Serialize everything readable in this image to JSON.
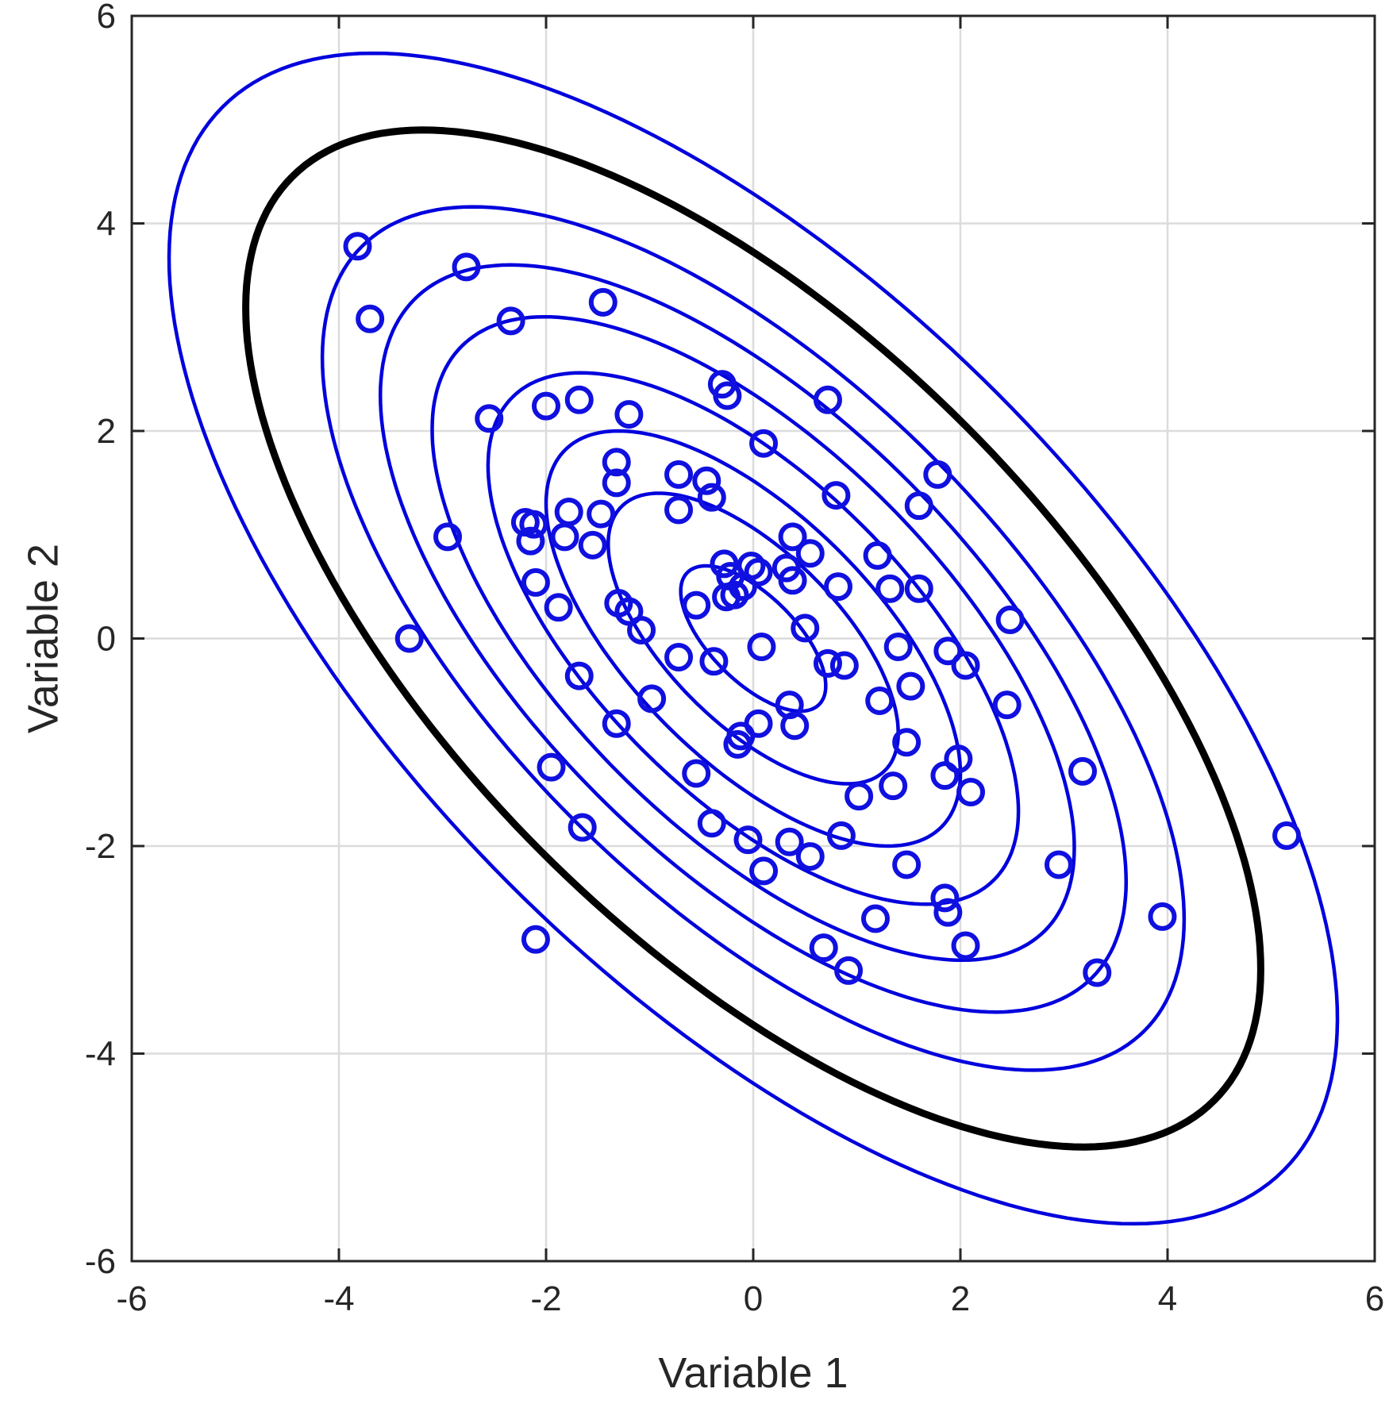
{
  "chart_data": {
    "type": "scatter",
    "xlabel": "Variable 1",
    "ylabel": "Variable 2",
    "xlim": [
      -6,
      6
    ],
    "ylim": [
      -6,
      6
    ],
    "xticks": [
      -6,
      -4,
      -2,
      0,
      2,
      4,
      6
    ],
    "yticks": [
      -6,
      -4,
      -2,
      0,
      2,
      4,
      6
    ],
    "xtick_labels": [
      "-6",
      "-4",
      "-2",
      "0",
      "2",
      "4",
      "6"
    ],
    "ytick_labels": [
      "-6",
      "-4",
      "-2",
      "0",
      "2",
      "4",
      "6"
    ],
    "grid": true,
    "colors": {
      "points": "#1010e0",
      "contours": "#0000dd",
      "highlight_contour": "#000000",
      "grid": "#dcdcdc",
      "axes": "#262626"
    },
    "points": [
      [
        -3.82,
        3.78
      ],
      [
        -2.77,
        3.58
      ],
      [
        -3.7,
        3.08
      ],
      [
        -2.34,
        3.06
      ],
      [
        -1.45,
        3.24
      ],
      [
        -2.55,
        2.12
      ],
      [
        -2.0,
        2.24
      ],
      [
        -1.68,
        2.3
      ],
      [
        -1.2,
        2.16
      ],
      [
        0.72,
        2.3
      ],
      [
        -0.3,
        2.45
      ],
      [
        -0.25,
        2.34
      ],
      [
        0.1,
        1.88
      ],
      [
        -1.32,
        1.7
      ],
      [
        -1.32,
        1.5
      ],
      [
        -0.72,
        1.58
      ],
      [
        -0.45,
        1.52
      ],
      [
        -0.4,
        1.36
      ],
      [
        0.8,
        1.38
      ],
      [
        1.78,
        1.58
      ],
      [
        1.6,
        1.28
      ],
      [
        -2.2,
        1.12
      ],
      [
        -2.12,
        1.1
      ],
      [
        -2.15,
        0.94
      ],
      [
        -1.78,
        1.22
      ],
      [
        -1.82,
        0.98
      ],
      [
        -1.47,
        1.2
      ],
      [
        -1.55,
        0.9
      ],
      [
        -0.72,
        1.24
      ],
      [
        -2.95,
        0.98
      ],
      [
        0.38,
        0.98
      ],
      [
        0.55,
        0.82
      ],
      [
        1.2,
        0.8
      ],
      [
        -0.28,
        0.72
      ],
      [
        -0.02,
        0.7
      ],
      [
        0.05,
        0.64
      ],
      [
        0.32,
        0.68
      ],
      [
        0.38,
        0.56
      ],
      [
        -0.22,
        0.6
      ],
      [
        -0.1,
        0.5
      ],
      [
        -0.18,
        0.42
      ],
      [
        -0.26,
        0.4
      ],
      [
        0.82,
        0.5
      ],
      [
        1.32,
        0.48
      ],
      [
        1.6,
        0.48
      ],
      [
        -2.1,
        0.54
      ],
      [
        -1.88,
        0.3
      ],
      [
        -1.3,
        0.34
      ],
      [
        -1.2,
        0.26
      ],
      [
        -0.55,
        0.32
      ],
      [
        -1.08,
        0.08
      ],
      [
        0.5,
        0.1
      ],
      [
        2.48,
        0.18
      ],
      [
        -3.32,
        0.0
      ],
      [
        0.08,
        -0.08
      ],
      [
        1.4,
        -0.08
      ],
      [
        1.88,
        -0.12
      ],
      [
        2.05,
        -0.26
      ],
      [
        -0.72,
        -0.18
      ],
      [
        -0.38,
        -0.22
      ],
      [
        0.72,
        -0.24
      ],
      [
        0.88,
        -0.26
      ],
      [
        -1.68,
        -0.36
      ],
      [
        1.52,
        -0.46
      ],
      [
        -0.98,
        -0.58
      ],
      [
        1.22,
        -0.6
      ],
      [
        2.45,
        -0.64
      ],
      [
        0.35,
        -0.64
      ],
      [
        -1.32,
        -0.82
      ],
      [
        0.4,
        -0.84
      ],
      [
        0.05,
        -0.82
      ],
      [
        -0.12,
        -0.94
      ],
      [
        -0.15,
        -1.02
      ],
      [
        1.48,
        -1.0
      ],
      [
        1.98,
        -1.16
      ],
      [
        -1.95,
        -1.24
      ],
      [
        -0.55,
        -1.3
      ],
      [
        1.85,
        -1.32
      ],
      [
        1.35,
        -1.42
      ],
      [
        2.1,
        -1.48
      ],
      [
        1.02,
        -1.52
      ],
      [
        3.18,
        -1.28
      ],
      [
        -1.65,
        -1.82
      ],
      [
        -0.4,
        -1.78
      ],
      [
        0.85,
        -1.9
      ],
      [
        -0.05,
        -1.94
      ],
      [
        0.35,
        -1.96
      ],
      [
        0.55,
        -2.1
      ],
      [
        0.1,
        -2.24
      ],
      [
        1.48,
        -2.18
      ],
      [
        2.95,
        -2.18
      ],
      [
        5.15,
        -1.9
      ],
      [
        1.85,
        -2.5
      ],
      [
        1.88,
        -2.64
      ],
      [
        1.18,
        -2.7
      ],
      [
        3.95,
        -2.68
      ],
      [
        -2.1,
        -2.9
      ],
      [
        0.68,
        -2.98
      ],
      [
        0.92,
        -3.2
      ],
      [
        2.05,
        -2.96
      ],
      [
        3.32,
        -3.22
      ]
    ],
    "contours": {
      "center": [
        0,
        0
      ],
      "variance_x": 4,
      "variance_y": 4,
      "covariance": -2.6,
      "mahalanobis_levels": [
        0.35,
        0.7,
        1.0,
        1.28,
        1.55,
        1.8,
        2.08,
        2.45,
        2.82
      ],
      "highlighted_level": 2.45
    }
  }
}
